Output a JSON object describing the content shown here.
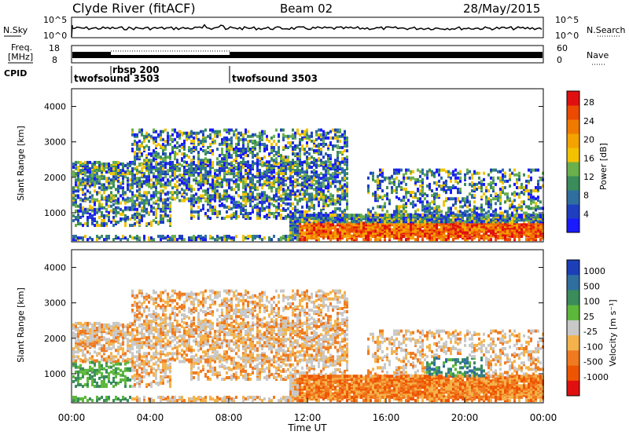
{
  "header": {
    "station": "Clyde River (fitACF)",
    "beam": "Beam 02",
    "date": "28/May/2015"
  },
  "status_panels": {
    "nsky_label": "N.Sky",
    "nsearch_label": "N.Search",
    "freq_label_1": "Freq.",
    "freq_label_2": "[MHz]",
    "nave_label": "Nave",
    "cpid_label": "CPID",
    "nsky_ticks": [
      "10^5",
      "10^0"
    ],
    "nsearch_ticks": [
      "10^5",
      "10^0"
    ],
    "freq_ticks": [
      "18",
      "8"
    ],
    "nave_ticks": [
      "60",
      "0"
    ],
    "cpid_segments": [
      {
        "label": "twofsound 3503",
        "start_hour": 0,
        "end_hour": 2
      },
      {
        "label": "rbsp 200",
        "start_hour": 2,
        "end_hour": 8
      },
      {
        "label": "twofsound 3503",
        "start_hour": 8,
        "end_hour": 24
      }
    ]
  },
  "colors": {
    "power_scale": [
      "#1a1aff",
      "#1f3fc0",
      "#2f6fa0",
      "#3a8c5a",
      "#6ab04c",
      "#f2c200",
      "#f5a300",
      "#f07a00",
      "#ec4a00",
      "#e01010"
    ],
    "velocity_scale": [
      "#1c3fb8",
      "#2f6fa0",
      "#3a8c5a",
      "#5cb83a",
      "#c8c8c8",
      "#f4b24a",
      "#f07a20",
      "#ee5500",
      "#e01010"
    ]
  },
  "chart_data": [
    {
      "type": "heatmap",
      "name": "power",
      "ylabel": "Slant Range [km]",
      "xlim": [
        0,
        24
      ],
      "ylim": [
        180,
        4500
      ],
      "yticks": [
        "1000",
        "2000",
        "3000",
        "4000"
      ],
      "colorbar_label": "Power [dB]",
      "colorbar_ticks": [
        "4",
        "8",
        "12",
        "16",
        "20",
        "24",
        "28"
      ]
    },
    {
      "type": "heatmap",
      "name": "velocity",
      "ylabel": "Slant Range [km]",
      "xlabel": "Time UT",
      "xlim": [
        0,
        24
      ],
      "ylim": [
        180,
        4500
      ],
      "yticks": [
        "1000",
        "2000",
        "3000",
        "4000"
      ],
      "xticks": [
        "00:00",
        "04:00",
        "08:00",
        "12:00",
        "16:00",
        "20:00",
        "00:00"
      ],
      "colorbar_label": "Velocity [m s⁻¹]",
      "colorbar_ticks": [
        "1000",
        "500",
        "100",
        "25",
        "-25",
        "-100",
        "-500",
        "-1000"
      ]
    }
  ]
}
